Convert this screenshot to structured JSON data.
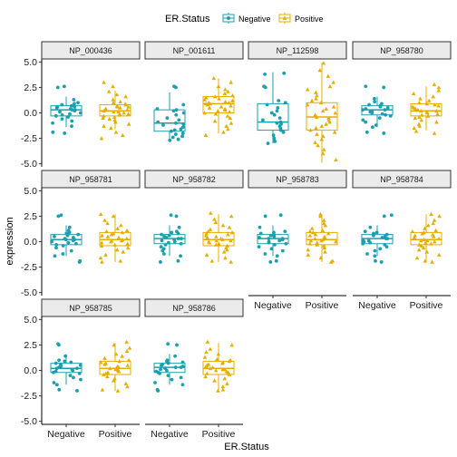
{
  "chart_data": {
    "type": "boxplot-jitter",
    "xlabel": "ER.Status",
    "ylabel": "expression",
    "legend": {
      "title": "ER.Status",
      "placement": "top",
      "entries": [
        {
          "label": "Negative",
          "color": "#1a9fae",
          "marker": "circle"
        },
        {
          "label": "Positive",
          "color": "#e6ac00",
          "marker": "triangle"
        }
      ]
    },
    "categories": [
      "Negative",
      "Positive"
    ],
    "yticks": [
      "5.0",
      "2.5",
      "0.0",
      "-2.5",
      "-5.0"
    ],
    "ylim": [
      -5.3,
      5.3
    ],
    "grid": false,
    "panels": [
      {
        "name": "NP_000436",
        "neg": {
          "q1": -0.3,
          "median": 0.3,
          "q3": 0.7,
          "lo": -1.4,
          "hi": 1.6,
          "points": [
            2.6,
            2.5,
            1.3,
            1.0,
            0.9,
            0.8,
            0.7,
            0.6,
            0.6,
            0.5,
            0.4,
            0.3,
            0.3,
            0.2,
            0.1,
            0.0,
            -0.1,
            -0.2,
            -0.3,
            -0.4,
            -0.6,
            -0.8,
            -1.0,
            -1.3,
            -1.9,
            -2.0
          ]
        },
        "pos": {
          "q1": -0.3,
          "median": 0.2,
          "q3": 0.8,
          "lo": -1.6,
          "hi": 2.2,
          "points": [
            3.0,
            2.6,
            2.1,
            1.8,
            1.6,
            1.3,
            1.1,
            1.0,
            0.9,
            0.8,
            0.7,
            0.6,
            0.6,
            0.5,
            0.4,
            0.4,
            0.3,
            0.3,
            0.2,
            0.1,
            0.1,
            0.0,
            -0.1,
            -0.1,
            -0.2,
            -0.3,
            -0.4,
            -0.5,
            -0.6,
            -0.7,
            -0.9,
            -1.1,
            -1.3,
            -1.5,
            -1.9,
            -2.2,
            -2.5
          ]
        }
      },
      {
        "name": "NP_001611",
        "neg": {
          "q1": -1.8,
          "median": -1.0,
          "q3": 0.3,
          "lo": -2.7,
          "hi": 2.0,
          "points": [
            2.6,
            2.5,
            0.8,
            0.4,
            0.3,
            0.2,
            0.0,
            -0.2,
            -0.5,
            -0.7,
            -0.9,
            -1.0,
            -1.1,
            -1.2,
            -1.4,
            -1.6,
            -1.7,
            -1.8,
            -2.0,
            -2.1,
            -2.3,
            -2.4,
            -2.6,
            -2.7
          ]
        },
        "pos": {
          "q1": 0.0,
          "median": 0.9,
          "q3": 1.6,
          "lo": -2.0,
          "hi": 3.4,
          "points": [
            3.4,
            3.0,
            2.6,
            2.3,
            2.1,
            1.9,
            1.7,
            1.6,
            1.5,
            1.4,
            1.3,
            1.2,
            1.1,
            1.0,
            1.0,
            0.9,
            0.9,
            0.8,
            0.7,
            0.6,
            0.5,
            0.4,
            0.3,
            0.2,
            0.1,
            0.0,
            -0.1,
            -0.3,
            -0.5,
            -0.8,
            -1.0,
            -1.3,
            -1.6,
            -1.9,
            -2.2
          ]
        }
      },
      {
        "name": "NP_112598",
        "neg": {
          "q1": -1.7,
          "median": -0.9,
          "q3": 0.9,
          "lo": -3.0,
          "hi": 4.0,
          "points": [
            3.9,
            3.8,
            2.6,
            2.5,
            1.2,
            1.0,
            0.8,
            0.5,
            0.2,
            0.0,
            -0.2,
            -0.5,
            -0.7,
            -0.9,
            -1.0,
            -1.1,
            -1.3,
            -1.5,
            -1.7,
            -1.9,
            -2.2,
            -2.5,
            -2.8,
            -3.0
          ]
        },
        "pos": {
          "q1": -1.7,
          "median": -0.4,
          "q3": 1.0,
          "lo": -4.9,
          "hi": 4.9,
          "points": [
            4.9,
            4.2,
            3.6,
            3.0,
            2.6,
            2.3,
            2.0,
            1.7,
            1.4,
            1.2,
            1.0,
            0.8,
            0.6,
            0.4,
            0.2,
            0.0,
            -0.2,
            -0.4,
            -0.5,
            -0.7,
            -0.9,
            -1.1,
            -1.3,
            -1.5,
            -1.7,
            -1.9,
            -2.1,
            -2.3,
            -2.6,
            -2.9,
            -3.2,
            -3.6,
            -4.0,
            -4.6
          ]
        }
      },
      {
        "name": "NP_958780",
        "neg": {
          "q1": -0.2,
          "median": 0.3,
          "q3": 0.7,
          "lo": -1.4,
          "hi": 1.6,
          "points": [
            2.6,
            2.5,
            1.4,
            1.1,
            0.9,
            0.8,
            0.7,
            0.6,
            0.5,
            0.4,
            0.3,
            0.3,
            0.2,
            0.1,
            0.0,
            -0.1,
            -0.2,
            -0.3,
            -0.5,
            -0.7,
            -0.9,
            -1.2,
            -1.4,
            -1.9,
            -2.0
          ]
        },
        "pos": {
          "q1": -0.3,
          "median": 0.2,
          "q3": 0.9,
          "lo": -1.7,
          "hi": 2.6,
          "points": [
            2.8,
            2.5,
            2.2,
            1.9,
            1.6,
            1.4,
            1.2,
            1.0,
            0.9,
            0.8,
            0.7,
            0.6,
            0.5,
            0.4,
            0.3,
            0.2,
            0.2,
            0.1,
            0.0,
            -0.1,
            -0.2,
            -0.3,
            -0.4,
            -0.5,
            -0.7,
            -0.9,
            -1.1,
            -1.3,
            -1.5,
            -1.8,
            -2.0
          ]
        }
      },
      {
        "name": "NP_958781",
        "neg": {
          "q1": -0.3,
          "median": 0.2,
          "q3": 0.7,
          "lo": -1.4,
          "hi": 1.6,
          "points": [
            2.6,
            2.5,
            1.4,
            1.1,
            0.9,
            0.8,
            0.7,
            0.6,
            0.5,
            0.4,
            0.3,
            0.2,
            0.2,
            0.1,
            0.0,
            -0.1,
            -0.2,
            -0.3,
            -0.4,
            -0.6,
            -0.9,
            -1.2,
            -1.4,
            -1.9,
            -2.0
          ]
        },
        "pos": {
          "q1": -0.4,
          "median": 0.2,
          "q3": 0.9,
          "lo": -2.0,
          "hi": 2.7,
          "points": [
            2.7,
            2.5,
            2.1,
            1.8,
            1.6,
            1.3,
            1.1,
            1.0,
            0.9,
            0.8,
            0.7,
            0.6,
            0.5,
            0.4,
            0.3,
            0.2,
            0.1,
            0.1,
            0.0,
            -0.1,
            -0.2,
            -0.3,
            -0.4,
            -0.6,
            -0.8,
            -1.0,
            -1.3,
            -1.6,
            -1.9,
            -2.0
          ]
        }
      },
      {
        "name": "NP_958782",
        "neg": {
          "q1": -0.2,
          "median": 0.3,
          "q3": 0.7,
          "lo": -1.4,
          "hi": 1.6,
          "points": [
            2.6,
            2.5,
            1.4,
            1.0,
            0.9,
            0.8,
            0.7,
            0.6,
            0.5,
            0.4,
            0.3,
            0.3,
            0.2,
            0.1,
            0.0,
            -0.1,
            -0.2,
            -0.3,
            -0.5,
            -0.7,
            -0.9,
            -1.2,
            -1.4,
            -1.9,
            -2.0
          ]
        },
        "pos": {
          "q1": -0.4,
          "median": 0.2,
          "q3": 0.9,
          "lo": -2.0,
          "hi": 2.7,
          "points": [
            2.8,
            2.5,
            2.2,
            1.9,
            1.6,
            1.4,
            1.2,
            1.0,
            0.9,
            0.8,
            0.7,
            0.6,
            0.5,
            0.4,
            0.3,
            0.2,
            0.1,
            0.1,
            0.0,
            -0.1,
            -0.2,
            -0.3,
            -0.4,
            -0.6,
            -0.8,
            -1.0,
            -1.3,
            -1.6,
            -1.9,
            -2.0
          ]
        }
      },
      {
        "name": "NP_958783",
        "neg": {
          "q1": -0.2,
          "median": 0.3,
          "q3": 0.7,
          "lo": -1.4,
          "hi": 1.6,
          "points": [
            2.6,
            2.5,
            1.4,
            1.0,
            0.9,
            0.8,
            0.7,
            0.6,
            0.5,
            0.4,
            0.3,
            0.3,
            0.2,
            0.1,
            0.0,
            -0.1,
            -0.2,
            -0.3,
            -0.5,
            -0.7,
            -0.9,
            -1.2,
            -1.4,
            -1.9,
            -2.0
          ]
        },
        "pos": {
          "q1": -0.3,
          "median": 0.2,
          "q3": 0.9,
          "lo": -2.0,
          "hi": 2.7,
          "points": [
            2.7,
            2.5,
            2.1,
            1.8,
            1.6,
            1.3,
            1.1,
            1.0,
            0.9,
            0.8,
            0.7,
            0.6,
            0.5,
            0.4,
            0.3,
            0.2,
            0.1,
            0.1,
            0.0,
            -0.1,
            -0.2,
            -0.3,
            -0.4,
            -0.6,
            -0.8,
            -1.0,
            -1.3,
            -1.6,
            -1.9,
            -2.0
          ]
        }
      },
      {
        "name": "NP_958784",
        "neg": {
          "q1": -0.2,
          "median": 0.3,
          "q3": 0.7,
          "lo": -1.4,
          "hi": 1.6,
          "points": [
            2.6,
            2.5,
            1.4,
            1.0,
            0.9,
            0.8,
            0.7,
            0.6,
            0.5,
            0.4,
            0.3,
            0.3,
            0.2,
            0.1,
            0.0,
            -0.1,
            -0.2,
            -0.3,
            -0.5,
            -0.7,
            -0.9,
            -1.2,
            -1.4,
            -1.9,
            -2.0
          ]
        },
        "pos": {
          "q1": -0.3,
          "median": 0.2,
          "q3": 0.9,
          "lo": -2.0,
          "hi": 2.7,
          "points": [
            2.7,
            2.5,
            2.1,
            1.8,
            1.6,
            1.3,
            1.1,
            1.0,
            0.9,
            0.8,
            0.7,
            0.6,
            0.5,
            0.4,
            0.3,
            0.2,
            0.1,
            0.1,
            0.0,
            -0.1,
            -0.2,
            -0.3,
            -0.4,
            -0.6,
            -0.8,
            -1.0,
            -1.3,
            -1.6,
            -1.9,
            -2.0
          ]
        }
      },
      {
        "name": "NP_958785",
        "neg": {
          "q1": -0.2,
          "median": 0.2,
          "q3": 0.7,
          "lo": -1.4,
          "hi": 1.6,
          "points": [
            2.6,
            2.5,
            1.4,
            1.0,
            0.9,
            0.8,
            0.7,
            0.6,
            0.5,
            0.4,
            0.3,
            0.2,
            0.2,
            0.1,
            0.0,
            -0.1,
            -0.2,
            -0.3,
            -0.5,
            -0.7,
            -0.9,
            -1.2,
            -1.4,
            -1.9,
            -2.0
          ]
        },
        "pos": {
          "q1": -0.4,
          "median": 0.2,
          "q3": 0.9,
          "lo": -2.0,
          "hi": 2.7,
          "points": [
            2.8,
            2.5,
            2.2,
            1.9,
            1.6,
            1.4,
            1.2,
            1.0,
            0.9,
            0.8,
            0.7,
            0.6,
            0.5,
            0.4,
            0.3,
            0.2,
            0.1,
            0.1,
            0.0,
            -0.1,
            -0.2,
            -0.3,
            -0.4,
            -0.6,
            -0.8,
            -1.0,
            -1.3,
            -1.6,
            -1.9,
            -2.0
          ]
        }
      },
      {
        "name": "NP_958786",
        "neg": {
          "q1": -0.2,
          "median": 0.3,
          "q3": 0.7,
          "lo": -1.4,
          "hi": 1.6,
          "points": [
            2.6,
            2.5,
            1.4,
            1.0,
            0.9,
            0.8,
            0.7,
            0.6,
            0.5,
            0.4,
            0.3,
            0.3,
            0.2,
            0.1,
            0.0,
            -0.1,
            -0.2,
            -0.3,
            -0.5,
            -0.7,
            -0.9,
            -1.2,
            -1.4,
            -1.9,
            -2.0
          ]
        },
        "pos": {
          "q1": -0.4,
          "median": 0.2,
          "q3": 0.9,
          "lo": -2.0,
          "hi": 2.7,
          "points": [
            2.8,
            2.5,
            2.1,
            1.8,
            1.6,
            1.3,
            1.1,
            1.0,
            0.9,
            0.8,
            0.7,
            0.6,
            0.5,
            0.4,
            0.3,
            0.2,
            0.1,
            0.1,
            0.0,
            -0.1,
            -0.2,
            -0.3,
            -0.4,
            -0.6,
            -0.8,
            -1.0,
            -1.3,
            -1.6,
            -1.9,
            -2.0
          ]
        }
      }
    ]
  }
}
